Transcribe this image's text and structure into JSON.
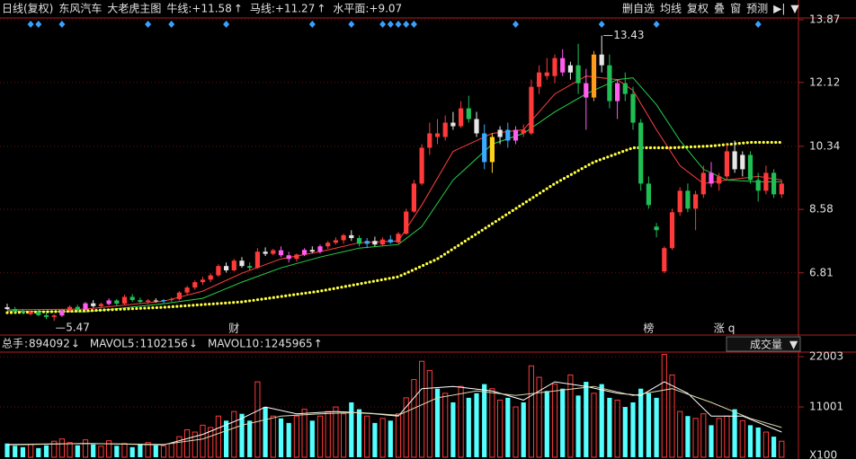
{
  "top_bar": {
    "period": "日线(复权)",
    "stock": "东风汽车",
    "indicator": "大老虎主图",
    "toolbar": [
      "删自选",
      "均线",
      "复权",
      "叠",
      "窗",
      "预测",
      "▶|",
      "▼"
    ]
  },
  "chart_data": {
    "type": "candlestick",
    "ylim": [
      5.15,
      13.92
    ],
    "yticks": [
      13.87,
      12.12,
      10.34,
      8.58,
      6.81
    ],
    "grid": true,
    "palette": {
      "r": "#ff3a3a",
      "g": "#1fbf55",
      "w": "#e6e6e6",
      "p": "#ff5cf0",
      "b": "#3aaaff",
      "y": "#ffd21a",
      "o": "#ff9a1a"
    },
    "candle_colors": "wggrggrprgpwrpgrggrwbrrrrrrrwrwgrwrpprpwprrrwgbwrbrrrrrrrwrgwbywbprrrrrpwgpowgpgggggrrrgrrprrwwggrgr",
    "ohlc": [
      [
        5.85,
        5.95,
        5.78,
        5.8
      ],
      [
        5.8,
        5.86,
        5.7,
        5.74
      ],
      [
        5.74,
        5.8,
        5.66,
        5.7
      ],
      [
        5.66,
        5.76,
        5.62,
        5.72
      ],
      [
        5.72,
        5.78,
        5.6,
        5.63
      ],
      [
        5.63,
        5.7,
        5.52,
        5.58
      ],
      [
        5.58,
        5.66,
        5.47,
        5.62
      ],
      [
        5.62,
        5.8,
        5.58,
        5.76
      ],
      [
        5.76,
        5.9,
        5.7,
        5.86
      ],
      [
        5.86,
        5.92,
        5.74,
        5.78
      ],
      [
        5.78,
        6.0,
        5.76,
        5.96
      ],
      [
        5.96,
        6.05,
        5.84,
        5.88
      ],
      [
        5.88,
        5.98,
        5.82,
        5.94
      ],
      [
        5.94,
        6.1,
        5.9,
        6.04
      ],
      [
        6.04,
        6.08,
        5.9,
        5.95
      ],
      [
        5.95,
        6.2,
        5.92,
        6.14
      ],
      [
        6.14,
        6.22,
        6.0,
        6.05
      ],
      [
        6.05,
        6.12,
        5.96,
        6.0
      ],
      [
        6.0,
        6.08,
        5.94,
        6.04
      ],
      [
        6.04,
        6.1,
        5.98,
        6.02
      ],
      [
        6.02,
        6.08,
        5.96,
        6.05
      ],
      [
        6.05,
        6.12,
        6.0,
        6.08
      ],
      [
        6.08,
        6.3,
        6.04,
        6.26
      ],
      [
        6.26,
        6.45,
        6.2,
        6.4
      ],
      [
        6.4,
        6.6,
        6.34,
        6.55
      ],
      [
        6.55,
        6.7,
        6.48,
        6.62
      ],
      [
        6.62,
        6.8,
        6.55,
        6.74
      ],
      [
        6.74,
        7.05,
        6.7,
        7.0
      ],
      [
        7.0,
        7.1,
        6.82,
        6.88
      ],
      [
        6.88,
        7.2,
        6.85,
        7.15
      ],
      [
        7.15,
        7.25,
        6.95,
        7.0
      ],
      [
        7.0,
        7.1,
        6.88,
        6.95
      ],
      [
        6.95,
        7.5,
        6.92,
        7.4
      ],
      [
        7.4,
        7.52,
        7.28,
        7.34
      ],
      [
        7.34,
        7.48,
        7.3,
        7.44
      ],
      [
        7.44,
        7.55,
        7.25,
        7.3
      ],
      [
        7.3,
        7.4,
        7.1,
        7.2
      ],
      [
        7.2,
        7.35,
        7.12,
        7.32
      ],
      [
        7.32,
        7.5,
        7.28,
        7.45
      ],
      [
        7.45,
        7.55,
        7.36,
        7.4
      ],
      [
        7.4,
        7.6,
        7.35,
        7.55
      ],
      [
        7.55,
        7.7,
        7.48,
        7.65
      ],
      [
        7.65,
        7.8,
        7.6,
        7.72
      ],
      [
        7.72,
        7.9,
        7.62,
        7.86
      ],
      [
        7.86,
        8.0,
        7.7,
        7.78
      ],
      [
        7.78,
        7.85,
        7.55,
        7.62
      ],
      [
        7.62,
        7.78,
        7.5,
        7.7
      ],
      [
        7.7,
        7.82,
        7.55,
        7.6
      ],
      [
        7.6,
        7.8,
        7.56,
        7.74
      ],
      [
        7.74,
        7.86,
        7.62,
        7.66
      ],
      [
        7.66,
        7.95,
        7.62,
        7.9
      ],
      [
        7.9,
        8.6,
        7.88,
        8.52
      ],
      [
        8.52,
        9.4,
        8.48,
        9.3
      ],
      [
        9.3,
        10.4,
        9.25,
        10.3
      ],
      [
        10.3,
        11.0,
        10.1,
        10.7
      ],
      [
        10.7,
        11.1,
        10.4,
        10.6
      ],
      [
        10.6,
        11.2,
        10.5,
        11.0
      ],
      [
        11.0,
        11.3,
        10.8,
        10.9
      ],
      [
        10.9,
        11.6,
        10.85,
        11.4
      ],
      [
        11.4,
        11.75,
        11.0,
        11.1
      ],
      [
        11.1,
        11.3,
        10.6,
        10.7
      ],
      [
        10.7,
        10.95,
        9.7,
        9.9
      ],
      [
        9.9,
        10.7,
        9.6,
        10.6
      ],
      [
        10.6,
        10.9,
        10.4,
        10.8
      ],
      [
        10.8,
        11.0,
        10.3,
        10.5
      ],
      [
        10.5,
        10.9,
        10.4,
        10.8
      ],
      [
        10.8,
        10.95,
        10.6,
        10.7
      ],
      [
        10.7,
        12.2,
        10.65,
        12.0
      ],
      [
        12.0,
        12.6,
        11.8,
        12.4
      ],
      [
        12.4,
        12.8,
        12.2,
        12.3
      ],
      [
        12.3,
        12.9,
        12.1,
        12.8
      ],
      [
        12.8,
        13.05,
        12.3,
        12.4
      ],
      [
        12.4,
        12.7,
        12.2,
        12.6
      ],
      [
        12.6,
        13.2,
        11.8,
        12.1
      ],
      [
        12.1,
        12.5,
        10.8,
        11.7
      ],
      [
        11.7,
        13.0,
        11.6,
        12.9
      ],
      [
        12.9,
        13.43,
        12.4,
        12.6
      ],
      [
        12.6,
        12.9,
        11.4,
        11.6
      ],
      [
        11.6,
        12.2,
        11.1,
        12.1
      ],
      [
        12.1,
        12.4,
        11.6,
        11.8
      ],
      [
        11.8,
        12.0,
        10.8,
        11.0
      ],
      [
        11.0,
        11.1,
        9.1,
        9.3
      ],
      [
        9.3,
        9.5,
        8.6,
        8.7
      ],
      [
        8.1,
        8.2,
        7.8,
        8.0
      ],
      [
        6.85,
        7.55,
        6.8,
        7.5
      ],
      [
        7.5,
        8.6,
        7.45,
        8.5
      ],
      [
        8.5,
        9.2,
        8.4,
        9.1
      ],
      [
        9.1,
        9.3,
        8.5,
        8.6
      ],
      [
        8.6,
        9.1,
        8.0,
        9.0
      ],
      [
        9.0,
        9.8,
        8.9,
        9.6
      ],
      [
        9.6,
        9.9,
        9.2,
        9.3
      ],
      [
        9.3,
        9.6,
        9.1,
        9.5
      ],
      [
        9.5,
        10.4,
        9.4,
        10.2
      ],
      [
        10.2,
        10.5,
        9.6,
        9.7
      ],
      [
        9.7,
        10.2,
        9.5,
        10.1
      ],
      [
        10.1,
        10.2,
        9.3,
        9.4
      ],
      [
        9.4,
        9.6,
        8.8,
        9.1
      ],
      [
        9.1,
        9.8,
        9.0,
        9.6
      ],
      [
        9.6,
        9.7,
        8.9,
        9.0
      ],
      [
        9.0,
        9.4,
        8.9,
        9.3
      ]
    ],
    "series": [
      {
        "name": "牛线",
        "color": "#ff4040",
        "value_label": "+11.58",
        "arrow": "↑",
        "style": "solid",
        "x": [
          0,
          10,
          20,
          25,
          30,
          35,
          40,
          45,
          50,
          53,
          57,
          62,
          66,
          70,
          74,
          78,
          80,
          83,
          86,
          89,
          92,
          96,
          99
        ],
        "values": [
          5.78,
          5.8,
          6.02,
          6.3,
          6.8,
          7.2,
          7.4,
          7.65,
          7.7,
          8.7,
          10.2,
          10.7,
          10.8,
          11.8,
          12.3,
          12.2,
          11.9,
          10.8,
          9.8,
          9.3,
          9.4,
          9.5,
          9.4
        ]
      },
      {
        "name": "马线",
        "color": "#28d04a",
        "value_label": "+11.27",
        "arrow": "↑",
        "style": "solid",
        "x": [
          0,
          10,
          20,
          25,
          30,
          35,
          40,
          45,
          50,
          53,
          57,
          62,
          66,
          70,
          74,
          78,
          80,
          83,
          86,
          89,
          92,
          96,
          99
        ],
        "values": [
          5.75,
          5.72,
          5.95,
          6.1,
          6.55,
          6.95,
          7.25,
          7.5,
          7.6,
          8.1,
          9.4,
          10.4,
          10.7,
          11.3,
          11.8,
          12.2,
          12.25,
          11.5,
          10.5,
          9.7,
          9.4,
          9.35,
          9.35
        ]
      },
      {
        "name": "水平面",
        "color": "#ffff40",
        "value_label": "+9.07",
        "arrow": "",
        "style": "dots",
        "x": [
          0,
          10,
          20,
          30,
          40,
          50,
          55,
          60,
          65,
          70,
          75,
          80,
          85,
          90,
          95,
          99
        ],
        "values": [
          5.7,
          5.75,
          5.85,
          6.0,
          6.3,
          6.7,
          7.2,
          7.9,
          8.6,
          9.3,
          9.9,
          10.3,
          10.3,
          10.35,
          10.45,
          10.45
        ]
      }
    ],
    "annotations": [
      {
        "value": 13.43,
        "index": 76
      },
      {
        "value": 5.47,
        "index": 6
      }
    ],
    "events": [
      {
        "index": 29,
        "label": "财",
        "color": "#8fc8ff"
      },
      {
        "index": 82,
        "label": "榜",
        "color": "#ff7cf0"
      },
      {
        "index": 91,
        "label": "涨",
        "color": "#ffffff"
      },
      {
        "index": 92.6,
        "label": "q",
        "color": "#ff4040"
      }
    ],
    "event_diamonds": [
      3,
      4,
      7,
      18,
      21,
      28,
      39,
      44,
      48,
      49,
      50,
      51,
      52,
      65,
      76,
      83,
      96
    ],
    "volume": {
      "title": "成交量",
      "ylim": [
        0,
        23400
      ],
      "yticks": [
        22003,
        11001
      ],
      "unit_label": "X100",
      "values": [
        3000,
        2500,
        2200,
        2800,
        2000,
        2600,
        3500,
        4000,
        3200,
        2600,
        3800,
        2800,
        2400,
        3600,
        2500,
        3000,
        2200,
        2800,
        3200,
        2600,
        2500,
        3000,
        4500,
        6000,
        5500,
        7000,
        6500,
        9000,
        8000,
        10000,
        9500,
        8000,
        16500,
        11000,
        9000,
        8500,
        7500,
        9000,
        10500,
        8000,
        9000,
        10000,
        11000,
        9500,
        12000,
        10500,
        9000,
        7500,
        8500,
        8000,
        9500,
        13000,
        17000,
        21000,
        19000,
        15000,
        14000,
        12000,
        15500,
        13000,
        14000,
        16000,
        15000,
        12500,
        13000,
        11000,
        12000,
        20000,
        17500,
        14500,
        16000,
        15000,
        18000,
        13500,
        16500,
        14000,
        16000,
        13000,
        12500,
        11000,
        12000,
        15000,
        14000,
        13000,
        22500,
        18000,
        10000,
        9000,
        8500,
        9500,
        7000,
        8500,
        9000,
        10500,
        8000,
        7000,
        6500,
        5500,
        4500,
        3500
      ],
      "stats": [
        {
          "name": "总手",
          "value": 894092,
          "arrow": "↓",
          "color": "#54ffff"
        },
        {
          "name": "MAVOL5",
          "value": 1102156,
          "arrow": "↓",
          "color": "#ffff54"
        },
        {
          "name": "MAVOL10",
          "value": 1245965,
          "arrow": "↑",
          "color": "#ffffff"
        }
      ],
      "series": [
        {
          "name": "MAVOL5",
          "color": "#ffffff",
          "x": [
            0,
            10,
            20,
            25,
            30,
            33,
            37,
            42,
            47,
            50,
            53,
            57,
            62,
            66,
            70,
            74,
            78,
            81,
            84,
            87,
            90,
            94,
            99
          ],
          "values": [
            2700,
            3000,
            2700,
            5000,
            8500,
            11000,
            9500,
            10000,
            9500,
            9000,
            15000,
            15500,
            14500,
            12500,
            16500,
            15500,
            14000,
            13500,
            16500,
            14000,
            9000,
            9000,
            5500
          ]
        },
        {
          "name": "MAVOL10",
          "color": "#d8d8b0",
          "x": [
            0,
            10,
            20,
            25,
            30,
            35,
            40,
            45,
            50,
            55,
            60,
            65,
            70,
            75,
            80,
            85,
            90,
            95,
            99
          ],
          "values": [
            2800,
            3000,
            2800,
            4000,
            7000,
            9000,
            9500,
            9800,
            9200,
            13000,
            14500,
            13500,
            14500,
            15500,
            13500,
            15000,
            12000,
            8500,
            6500
          ]
        }
      ]
    }
  }
}
